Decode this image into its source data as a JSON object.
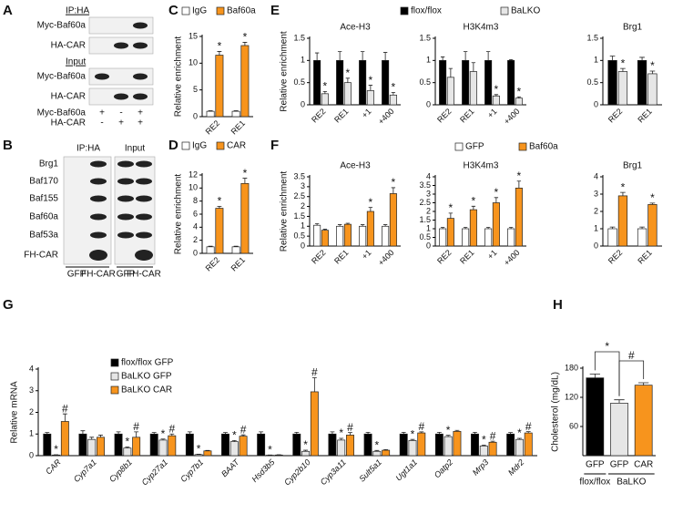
{
  "blots": [
    {
      "label": "A",
      "sections": [
        {
          "title": "IP:HA",
          "rows": [
            "Myc-Baf60a",
            "HA-CAR"
          ]
        },
        {
          "title": "Input",
          "rows": [
            "Myc-Baf60a",
            "HA-CAR"
          ]
        }
      ],
      "conditions": [
        {
          "name": "Myc-Baf60a",
          "signs": [
            "+",
            "-",
            "+"
          ]
        },
        {
          "name": "HA-CAR",
          "signs": [
            "-",
            "+",
            "+"
          ]
        }
      ]
    },
    {
      "label": "B",
      "headers": [
        "IP:HA",
        "Input"
      ],
      "rows": [
        "Brg1",
        "Baf170",
        "Baf155",
        "Baf60a",
        "Baf53a",
        "FH-CAR"
      ],
      "lanes": [
        "GFP",
        "FH-CAR",
        "GFP",
        "FH-CAR"
      ]
    }
  ],
  "chart_data": [
    {
      "type": "bar",
      "label": "C",
      "ylabel": "Relative enrichment",
      "categories": [
        "RE2",
        "RE1"
      ],
      "series": [
        {
          "name": "IgG",
          "color": "#ffffff",
          "values": [
            1,
            1
          ],
          "errors": [
            0.1,
            0.1
          ]
        },
        {
          "name": "Baf60a",
          "color": "#f7941d",
          "values": [
            11.5,
            13.3
          ],
          "errors": [
            0.7,
            0.6
          ],
          "marker_labels": [
            "*",
            "*"
          ]
        }
      ],
      "ylim": [
        0,
        15
      ],
      "yticks": [
        0,
        5,
        10,
        15
      ]
    },
    {
      "type": "bar",
      "label": "D",
      "ylabel": "Relative enrichment",
      "categories": [
        "RE2",
        "RE1"
      ],
      "series": [
        {
          "name": "IgG",
          "color": "#ffffff",
          "values": [
            1,
            1
          ],
          "errors": [
            0.1,
            0.1
          ]
        },
        {
          "name": "CAR",
          "color": "#f7941d",
          "values": [
            6.9,
            10.7
          ],
          "errors": [
            0.3,
            0.8
          ],
          "marker_labels": [
            "*",
            "*"
          ]
        }
      ],
      "ylim": [
        0,
        12
      ],
      "yticks": [
        0,
        2,
        4,
        6,
        8,
        10,
        12
      ]
    },
    {
      "type": "bar",
      "label": "E",
      "ylabel": "Relative enrichment",
      "series": [
        {
          "name": "flox/flox",
          "color": "#000000"
        },
        {
          "name": "BaLKO",
          "color": "#e6e6e6"
        }
      ],
      "subplots": [
        {
          "title": "Ace-H3",
          "categories": [
            "RE2",
            "RE1",
            "+1",
            "+400"
          ],
          "series": [
            {
              "values": [
                1,
                1,
                1,
                1
              ],
              "errors": [
                0.17,
                0.2,
                0.2,
                0.18
              ]
            },
            {
              "values": [
                0.25,
                0.5,
                0.32,
                0.22
              ],
              "errors": [
                0.05,
                0.1,
                0.12,
                0.06
              ],
              "marker_labels": [
                "*",
                "*",
                "*",
                "*"
              ]
            }
          ],
          "ylim": [
            0,
            1.5
          ],
          "yticks": [
            0,
            0.5,
            1,
            1.5
          ]
        },
        {
          "title": "H3K4m3",
          "categories": [
            "RE2",
            "RE1",
            "+1",
            "+400"
          ],
          "series": [
            {
              "values": [
                1,
                1,
                1,
                1
              ],
              "errors": [
                0.08,
                0.2,
                0.2,
                0.02
              ]
            },
            {
              "values": [
                0.62,
                0.75,
                0.2,
                0.15
              ],
              "errors": [
                0.2,
                0.2,
                0.03,
                0.03
              ],
              "marker_labels": [
                null,
                null,
                "*",
                "*"
              ]
            }
          ],
          "ylim": [
            0,
            1.5
          ],
          "yticks": [
            0,
            0.5,
            1,
            1.5
          ]
        },
        {
          "title": "Brg1",
          "categories": [
            "RE2",
            "RE1"
          ],
          "series": [
            {
              "values": [
                1,
                1
              ],
              "errors": [
                0.1,
                0.07
              ]
            },
            {
              "values": [
                0.75,
                0.7
              ],
              "errors": [
                0.07,
                0.06
              ],
              "marker_labels": [
                "*",
                "*"
              ]
            }
          ],
          "ylim": [
            0,
            1.5
          ],
          "yticks": [
            0,
            0.5,
            1,
            1.5
          ]
        }
      ]
    },
    {
      "type": "bar",
      "label": "F",
      "ylabel": "Relative enrichment",
      "series": [
        {
          "name": "GFP",
          "color": "#ffffff"
        },
        {
          "name": "Baf60a",
          "color": "#f7941d"
        }
      ],
      "subplots": [
        {
          "title": "Ace-H3",
          "categories": [
            "RE2",
            "RE1",
            "+1",
            "+400"
          ],
          "series": [
            {
              "values": [
                1.05,
                1,
                1,
                1
              ],
              "errors": [
                0.08,
                0.08,
                0.08,
                0.08
              ]
            },
            {
              "values": [
                0.8,
                1.1,
                1.75,
                2.65
              ],
              "errors": [
                0.05,
                0.05,
                0.2,
                0.3
              ],
              "marker_labels": [
                null,
                null,
                "*",
                "*"
              ]
            }
          ],
          "ylim": [
            0,
            3.5
          ],
          "yticks": [
            0,
            0.5,
            1,
            1.5,
            2,
            2.5,
            3,
            3.5
          ]
        },
        {
          "title": "H3K4m3",
          "categories": [
            "RE2",
            "RE1",
            "+1",
            "+400"
          ],
          "series": [
            {
              "values": [
                1,
                1,
                1,
                1
              ],
              "errors": [
                0.08,
                0.08,
                0.08,
                0.08
              ]
            },
            {
              "values": [
                1.6,
                2.1,
                2.5,
                3.35
              ],
              "errors": [
                0.3,
                0.2,
                0.3,
                0.4
              ],
              "marker_labels": [
                "*",
                "*",
                "*",
                "*"
              ]
            }
          ],
          "ylim": [
            0,
            4
          ],
          "yticks": [
            0,
            0.5,
            1,
            1.5,
            2,
            2.5,
            3,
            3.5,
            4
          ]
        },
        {
          "title": "Brg1",
          "categories": [
            "RE2",
            "RE1"
          ],
          "series": [
            {
              "values": [
                1,
                1
              ],
              "errors": [
                0.1,
                0.1
              ]
            },
            {
              "values": [
                2.9,
                2.4
              ],
              "errors": [
                0.2,
                0.08
              ],
              "marker_labels": [
                "*",
                "*"
              ]
            }
          ],
          "ylim": [
            0,
            4
          ],
          "yticks": [
            0,
            1,
            2,
            3,
            4
          ]
        }
      ]
    },
    {
      "type": "bar",
      "label": "G",
      "ylabel": "Relative mRNA",
      "categories": [
        "CAR",
        "Cyp7a1",
        "Cyp8b1",
        "Cyp27a1",
        "Cyp7b1",
        "BAAT",
        "Hsd3b5",
        "Cyp2b10",
        "Cyp3a11",
        "Sult5a1",
        "Ugt1a1",
        "Oatp2",
        "Mrp3",
        "Mdr2"
      ],
      "series": [
        {
          "name": "flox/flox GFP",
          "color": "#000000",
          "values": [
            1,
            1,
            1,
            1,
            1,
            1,
            1,
            1,
            1,
            1,
            1,
            1,
            1,
            1
          ],
          "errors": [
            0.07,
            0.15,
            0.1,
            0.07,
            0.1,
            0.07,
            0.1,
            0.08,
            0.1,
            0.08,
            0.08,
            0.08,
            0.08,
            0.07
          ]
        },
        {
          "name": "BaLKO GFP",
          "color": "#e6e6e6",
          "values": [
            0.03,
            0.75,
            0.35,
            0.72,
            0.05,
            0.65,
            0.02,
            0.2,
            0.72,
            0.2,
            0.7,
            0.88,
            0.45,
            0.75
          ],
          "errors": [
            0.01,
            0.1,
            0.05,
            0.05,
            0.02,
            0.05,
            0.01,
            0.05,
            0.08,
            0.04,
            0.05,
            0.06,
            0.04,
            0.05
          ],
          "marker_labels": [
            "*",
            null,
            "*",
            "*",
            "*",
            "*",
            "*",
            "*",
            "*",
            "*",
            "*",
            "*",
            "*",
            "*"
          ]
        },
        {
          "name": "BaLKO CAR",
          "color": "#f7941d",
          "values": [
            1.58,
            0.85,
            0.85,
            0.92,
            0.22,
            0.9,
            0.03,
            2.95,
            0.95,
            0.25,
            1.05,
            1.12,
            0.62,
            1.05
          ],
          "errors": [
            0.35,
            0.1,
            0.25,
            0.08,
            0.02,
            0.06,
            0.01,
            0.65,
            0.12,
            0.03,
            0.05,
            0.05,
            0.05,
            0.06
          ],
          "marker_labels": [
            "#",
            null,
            "#",
            "#",
            null,
            "#",
            null,
            "#",
            "#",
            null,
            "#",
            null,
            "#",
            "#"
          ]
        }
      ],
      "ylim": [
        0,
        4
      ],
      "yticks": [
        0,
        1,
        2,
        3,
        4
      ]
    },
    {
      "type": "bar",
      "label": "H",
      "ylabel": "Cholesterol (mg/dL)",
      "categories": [
        "GFP",
        "GFP",
        "CAR"
      ],
      "series": [
        {
          "values": [
            160,
            108,
            145
          ],
          "errors": [
            8,
            7,
            5
          ],
          "colors": [
            "#000000",
            "#e6e6e6",
            "#f7941d"
          ]
        }
      ],
      "group_labels": [
        "flox/flox",
        "BaLKO"
      ],
      "comparison_labels": [
        "*",
        "#"
      ],
      "ylim": [
        0,
        180
      ],
      "yticks": [
        60,
        120,
        180
      ]
    }
  ]
}
